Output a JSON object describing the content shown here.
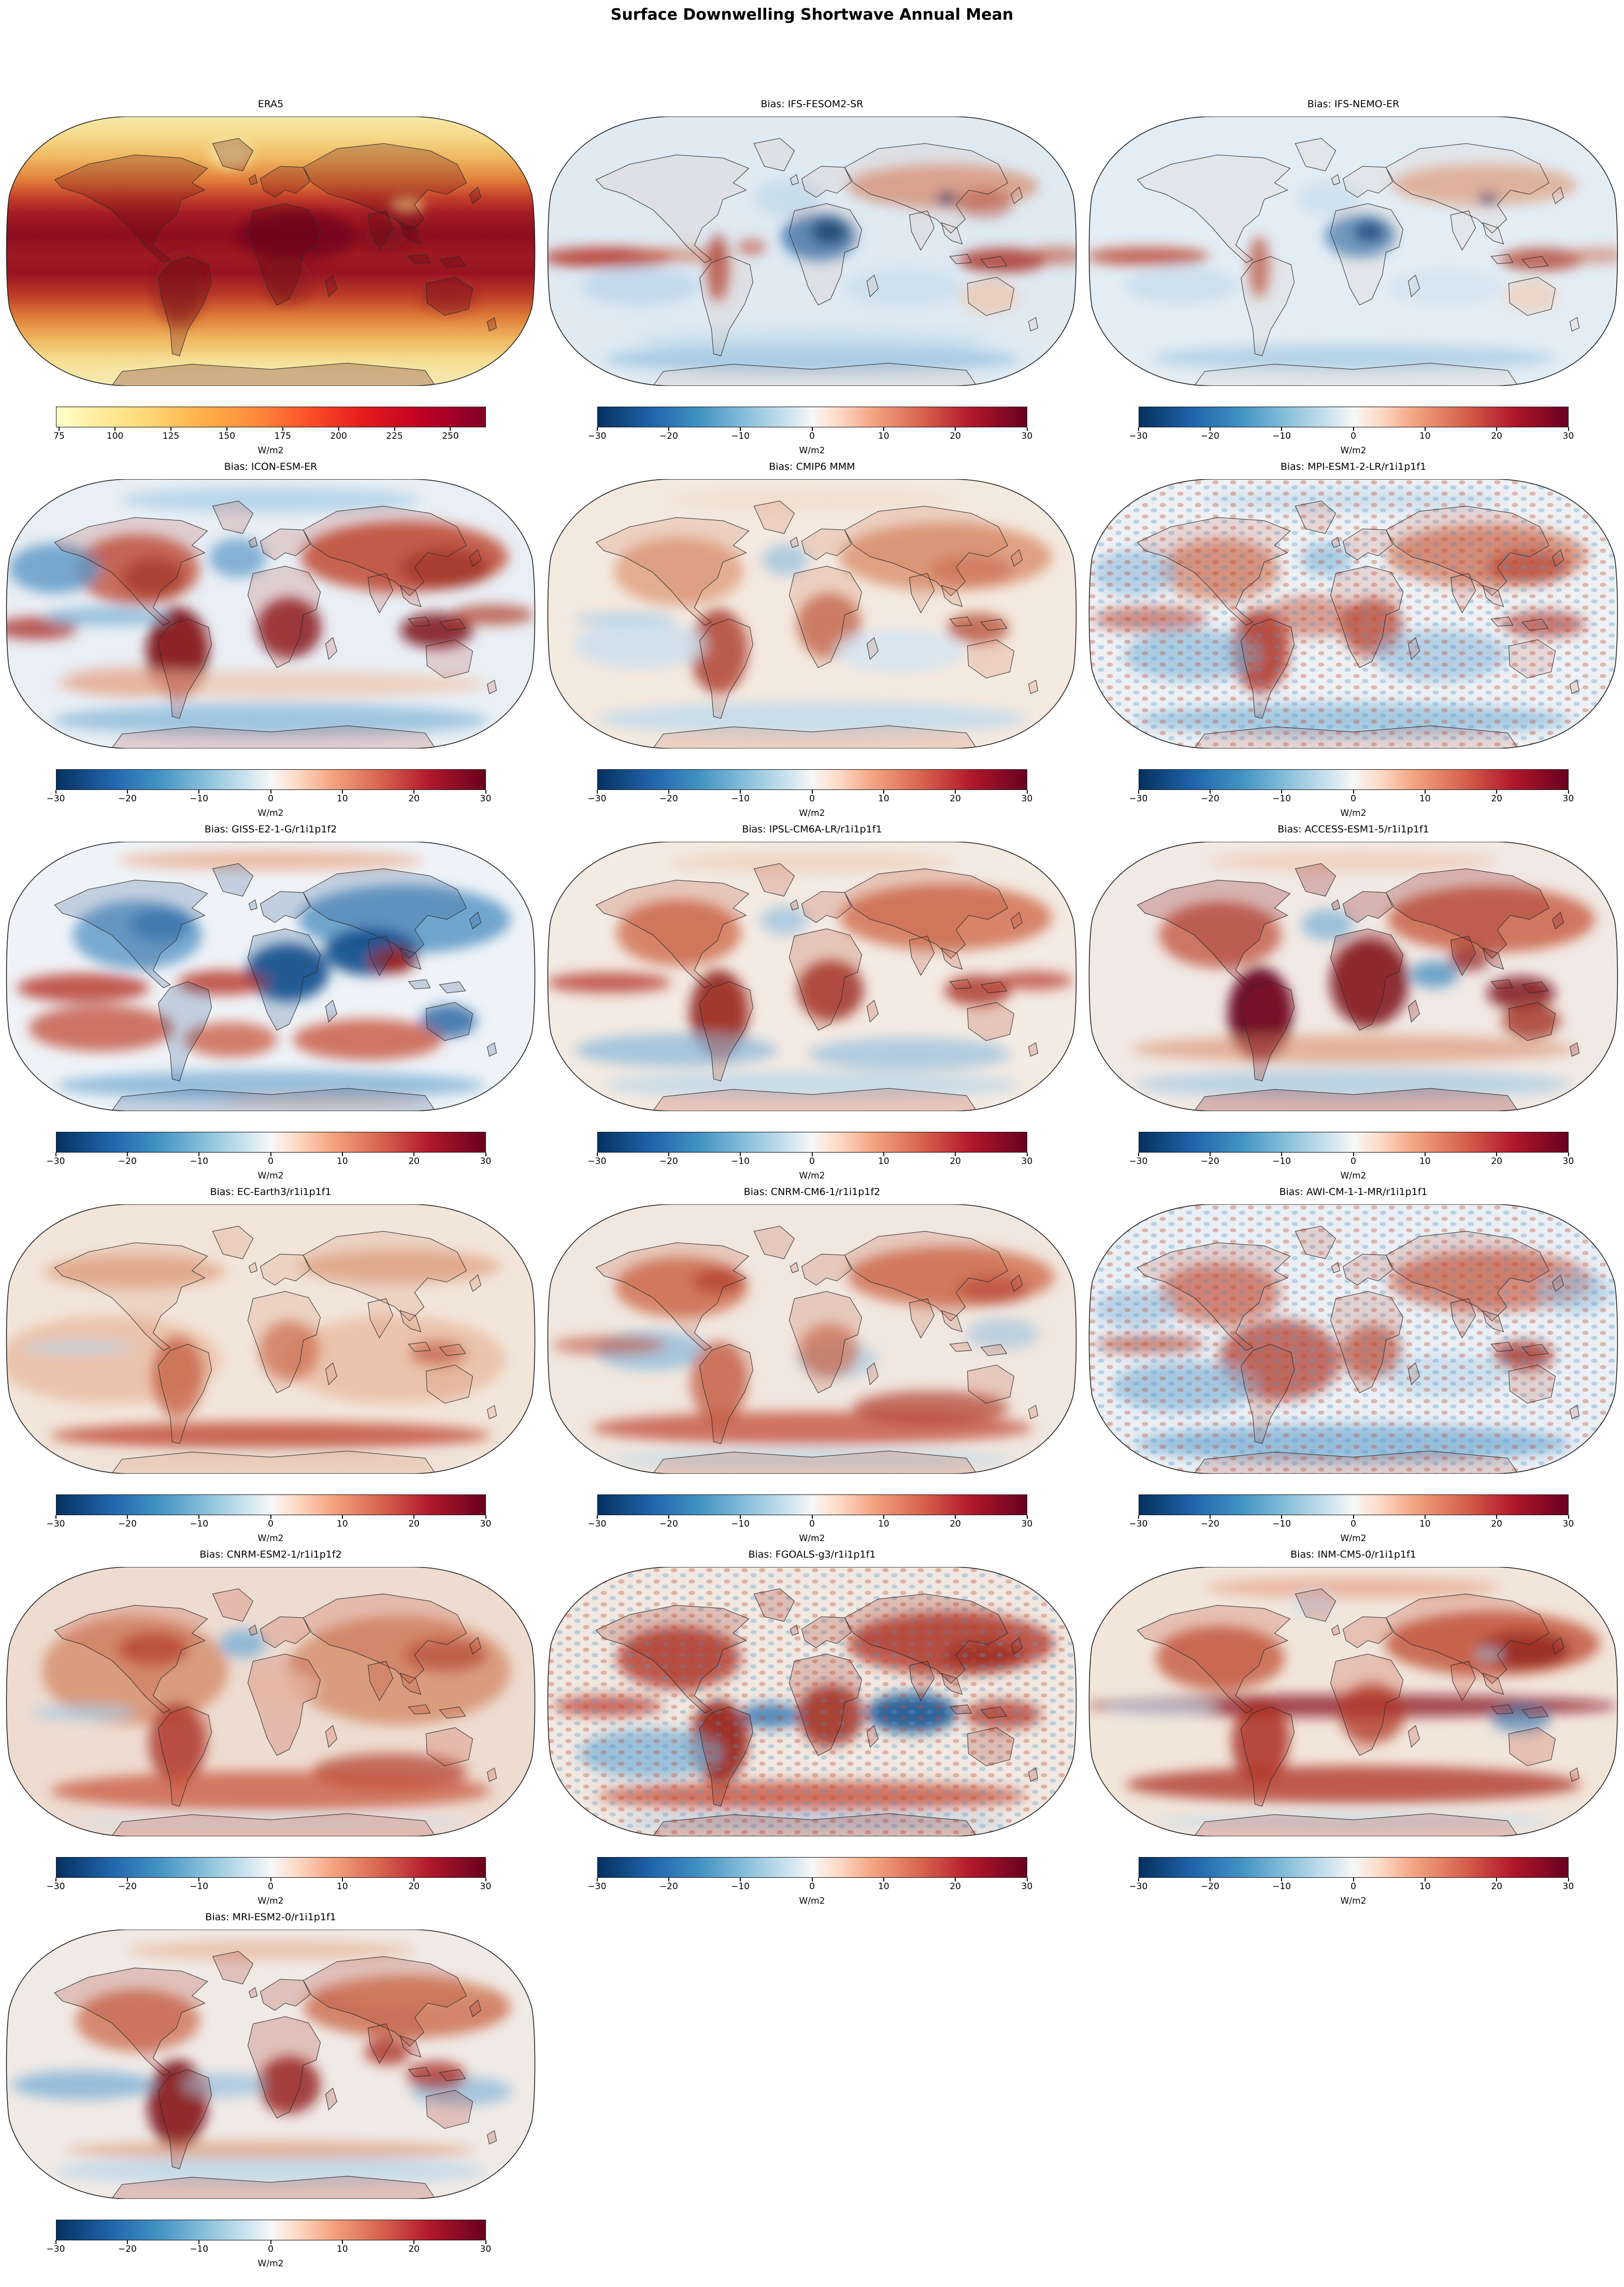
{
  "figure": {
    "title": "Surface Downwelling Shortwave Annual Mean"
  },
  "unit_label": "W/m2",
  "reference_colorbar": {
    "colormap": "YlOrRd",
    "unit": "W/m2",
    "ticks": [
      "75",
      "100",
      "125",
      "150",
      "175",
      "200",
      "225",
      "250"
    ],
    "stops": [
      [
        "#ffffcc",
        0
      ],
      [
        "#ffeda0",
        9
      ],
      [
        "#fed976",
        21
      ],
      [
        "#feb24c",
        33
      ],
      [
        "#fd8d3c",
        46
      ],
      [
        "#fc4e2a",
        59
      ],
      [
        "#e31a1c",
        72
      ],
      [
        "#bd0026",
        86
      ],
      [
        "#800026",
        100
      ]
    ]
  },
  "bias_colorbar": {
    "colormap": "RdBu_r",
    "unit": "W/m2",
    "vmin": -30,
    "vmax": 30,
    "ticks": [
      "−30",
      "−20",
      "−10",
      "0",
      "10",
      "20",
      "30"
    ],
    "stops": [
      [
        "#053061",
        0
      ],
      [
        "#2166ac",
        13
      ],
      [
        "#4393c3",
        24
      ],
      [
        "#92c5de",
        36
      ],
      [
        "#d1e5f0",
        45
      ],
      [
        "#f7f7f7",
        50
      ],
      [
        "#fddbc7",
        56
      ],
      [
        "#f4a582",
        64
      ],
      [
        "#d6604d",
        76
      ],
      [
        "#b2182b",
        87
      ],
      [
        "#67001f",
        100
      ]
    ]
  },
  "panels": [
    {
      "title": "ERA5",
      "kind": "reference"
    },
    {
      "title": "Bias: IFS-FESOM2-SR",
      "kind": "bias"
    },
    {
      "title": "Bias: IFS-NEMO-ER",
      "kind": "bias"
    },
    {
      "title": "Bias: ICON-ESM-ER",
      "kind": "bias"
    },
    {
      "title": "Bias: CMIP6 MMM",
      "kind": "bias"
    },
    {
      "title": "Bias: MPI-ESM1-2-LR/r1i1p1f1",
      "kind": "bias"
    },
    {
      "title": "Bias: GISS-E2-1-G/r1i1p1f2",
      "kind": "bias"
    },
    {
      "title": "Bias: IPSL-CM6A-LR/r1i1p1f1",
      "kind": "bias"
    },
    {
      "title": "Bias: ACCESS-ESM1-5/r1i1p1f1",
      "kind": "bias"
    },
    {
      "title": "Bias: EC-Earth3/r1i1p1f1",
      "kind": "bias"
    },
    {
      "title": "Bias: CNRM-CM6-1/r1i1p1f2",
      "kind": "bias"
    },
    {
      "title": "Bias: AWI-CM-1-1-MR/r1i1p1f1",
      "kind": "bias"
    },
    {
      "title": "Bias: CNRM-ESM2-1/r1i1p1f2",
      "kind": "bias"
    },
    {
      "title": "Bias: FGOALS-g3/r1i1p1f1",
      "kind": "bias"
    },
    {
      "title": "Bias: INM-CM5-0/r1i1p1f1",
      "kind": "bias"
    },
    {
      "title": "Bias: MRI-ESM2-0/r1i1p1f1",
      "kind": "bias"
    }
  ],
  "chart_data": [
    {
      "type": "heatmap",
      "title": "ERA5",
      "projection": "Robinson",
      "variable": "Surface Downwelling Shortwave Annual Mean",
      "units": "W/m2",
      "colormap": "YlOrRd",
      "colorbar_ticks": [
        75,
        100,
        125,
        150,
        175,
        200,
        225,
        250
      ],
      "value_range_approx": [
        73,
        266
      ],
      "pattern": "Low values (~75-120 W/m2) at high latitudes, maxima (~230-260 W/m2) in subtropical deserts (Sahara, Arabia, Tibet margin, Australia, Andes/Atacama); equatorial oceans ~180-220 W/m2"
    },
    {
      "type": "heatmap",
      "title": "Bias: IFS-FESOM2-SR",
      "projection": "Robinson",
      "units": "W/m2",
      "colormap": "RdBu_r",
      "vmin": -30,
      "vmax": 30,
      "colorbar_ticks": [
        -30,
        -20,
        -10,
        0,
        10,
        20,
        30
      ],
      "pattern": "Mostly weak negative bias over oceans; strong positive band along the Pacific ITCZ and near New Guinea; strong negative over Sahara and Tibet; positive over midlatitude Eurasia and the Andes"
    },
    {
      "type": "heatmap",
      "title": "Bias: IFS-NEMO-ER",
      "projection": "Robinson",
      "units": "W/m2",
      "colormap": "RdBu_r",
      "vmin": -30,
      "vmax": 30,
      "colorbar_ticks": [
        -30,
        -20,
        -10,
        0,
        10,
        20,
        30
      ],
      "pattern": "Similar to IFS-FESOM2-SR but slightly weaker: pale negative oceans, positive ITCZ band, negative Sahara/Tibet, positive Eurasia"
    },
    {
      "type": "heatmap",
      "title": "Bias: ICON-ESM-ER",
      "projection": "Robinson",
      "units": "W/m2",
      "colormap": "RdBu_r",
      "vmin": -30,
      "vmax": 30,
      "colorbar_ticks": [
        -30,
        -20,
        -10,
        0,
        10,
        20,
        30
      ],
      "pattern": "Strong positive bias over continents (dark red Amazon, central Africa, Maritime Continent, Eurasia); negative over North Pacific, North Atlantic, equatorial upwelling zones and Southern Ocean"
    },
    {
      "type": "heatmap",
      "title": "Bias: CMIP6 MMM",
      "projection": "Robinson",
      "units": "W/m2",
      "colormap": "RdBu_r",
      "vmin": -30,
      "vmax": 30,
      "colorbar_ticks": [
        -30,
        -20,
        -10,
        0,
        10,
        20,
        30
      ],
      "pattern": "Moderate positive bias over most land (strong over Amazon); weak negative over subtropical oceans, North Atlantic and Southern Ocean"
    },
    {
      "type": "heatmap",
      "title": "Bias: MPI-ESM1-2-LR/r1i1p1f1",
      "projection": "Robinson",
      "units": "W/m2",
      "colormap": "RdBu_r",
      "vmin": -30,
      "vmax": 30,
      "colorbar_ticks": [
        -30,
        -20,
        -10,
        0,
        10,
        20,
        30
      ],
      "pattern": "Noisy speckled alternating positive/negative pattern over oceans; positive over land with strong Amazon/Africa maxima; negative Southern Ocean"
    },
    {
      "type": "heatmap",
      "title": "Bias: GISS-E2-1-G/r1i1p1f2",
      "projection": "Robinson",
      "units": "W/m2",
      "colormap": "RdBu_r",
      "vmin": -30,
      "vmax": 30,
      "colorbar_ticks": [
        -30,
        -20,
        -10,
        0,
        10,
        20,
        30
      ],
      "pattern": "Negative bias over Northern Hemisphere land, Sahara and Middle East (dark blue); positive over India/Tibet; positive bands over tropical and southern midlatitude oceans; negative Australia and Southern Ocean"
    },
    {
      "type": "heatmap",
      "title": "Bias: IPSL-CM6A-LR/r1i1p1f1",
      "projection": "Robinson",
      "units": "W/m2",
      "colormap": "RdBu_r",
      "vmin": -30,
      "vmax": 30,
      "colorbar_ticks": [
        -30,
        -20,
        -10,
        0,
        10,
        20,
        30
      ],
      "pattern": "Positive bias over land and tropical bands (strong Amazon, central Africa, Maritime Continent); negative bands over southern midlatitude oceans"
    },
    {
      "type": "heatmap",
      "title": "Bias: ACCESS-ESM1-5/r1i1p1f1",
      "projection": "Robinson",
      "units": "W/m2",
      "colormap": "RdBu_r",
      "vmin": -30,
      "vmax": 30,
      "colorbar_ticks": [
        -30,
        -20,
        -10,
        0,
        10,
        20,
        30
      ],
      "pattern": "Very strong positive bias over South America and Africa (dark maroon); positive Eurasia and Australia; negative Arabian Sea and North Atlantic; weak negative Southern Ocean"
    },
    {
      "type": "heatmap",
      "title": "Bias: EC-Earth3/r1i1p1f1",
      "projection": "Robinson",
      "units": "W/m2",
      "colormap": "RdBu_r",
      "vmin": -30,
      "vmax": 30,
      "colorbar_ticks": [
        -30,
        -20,
        -10,
        0,
        10,
        20,
        30
      ],
      "pattern": "Weak widespread positive bias over oceans and land; stronger positive band over the Southern Ocean near 60S; slight negative equatorial Pacific sliver"
    },
    {
      "type": "heatmap",
      "title": "Bias: CNRM-CM6-1/r1i1p1f2",
      "projection": "Robinson",
      "units": "W/m2",
      "colormap": "RdBu_r",
      "vmin": -30,
      "vmax": 30,
      "colorbar_ticks": [
        -30,
        -20,
        -10,
        0,
        10,
        20,
        30
      ],
      "pattern": "Swirly positive bias over northern continents and a southern midlatitude band; scattered negative patches over tropical oceans and Gulf of Guinea"
    },
    {
      "type": "heatmap",
      "title": "Bias: AWI-CM-1-1-MR/r1i1p1f1",
      "projection": "Robinson",
      "units": "W/m2",
      "colormap": "RdBu_r",
      "vmin": -30,
      "vmax": 30,
      "colorbar_ticks": [
        -30,
        -20,
        -10,
        0,
        10,
        20,
        30
      ],
      "pattern": "Noisy speckled pattern; positive over Atlantic sector and South America; negative over southeast Pacific and Southern Ocean; positive Maritime Continent"
    },
    {
      "type": "heatmap",
      "title": "Bias: CNRM-ESM2-1/r1i1p1f2",
      "projection": "Robinson",
      "units": "W/m2",
      "colormap": "RdBu_r",
      "vmin": -30,
      "vmax": 30,
      "colorbar_ticks": [
        -30,
        -20,
        -10,
        0,
        10,
        20,
        30
      ],
      "pattern": "Widespread strong positive bias over land and ocean; small negative spots over North Atlantic and equatorial Pacific; pale Sahara"
    },
    {
      "type": "heatmap",
      "title": "Bias: FGOALS-g3/r1i1p1f1",
      "projection": "Robinson",
      "units": "W/m2",
      "colormap": "RdBu_r",
      "vmin": -30,
      "vmax": 30,
      "colorbar_ticks": [
        -30,
        -20,
        -10,
        0,
        10,
        20,
        30
      ],
      "pattern": "Strong positive bias over land (dark Amazon/Africa); strong negative over Indian Ocean and equatorial Atlantic; negative stripes in southeast Pacific; noisy texture"
    },
    {
      "type": "heatmap",
      "title": "Bias: INM-CM5-0/r1i1p1f1",
      "projection": "Robinson",
      "units": "W/m2",
      "colormap": "RdBu_r",
      "vmin": -30,
      "vmax": 30,
      "colorbar_ticks": [
        -30,
        -20,
        -10,
        0,
        10,
        20,
        30
      ],
      "pattern": "Strong widespread positive bias; dark maroon equatorial band and Eurasian core; dark southern midlatitude band; small negative patches near Tibet, Indonesia seas and Antarctic coast"
    },
    {
      "type": "heatmap",
      "title": "Bias: MRI-ESM2-0/r1i1p1f1",
      "projection": "Robinson",
      "units": "W/m2",
      "colormap": "RdBu_r",
      "vmin": -30,
      "vmax": 30,
      "colorbar_ticks": [
        -30,
        -20,
        -10,
        0,
        10,
        20,
        30
      ],
      "pattern": "Positive bias over land, strongest over South America and southern Africa; positive Maritime Continent; negative bands over tropical Pacific and Atlantic; pale negative Southern Ocean"
    }
  ]
}
